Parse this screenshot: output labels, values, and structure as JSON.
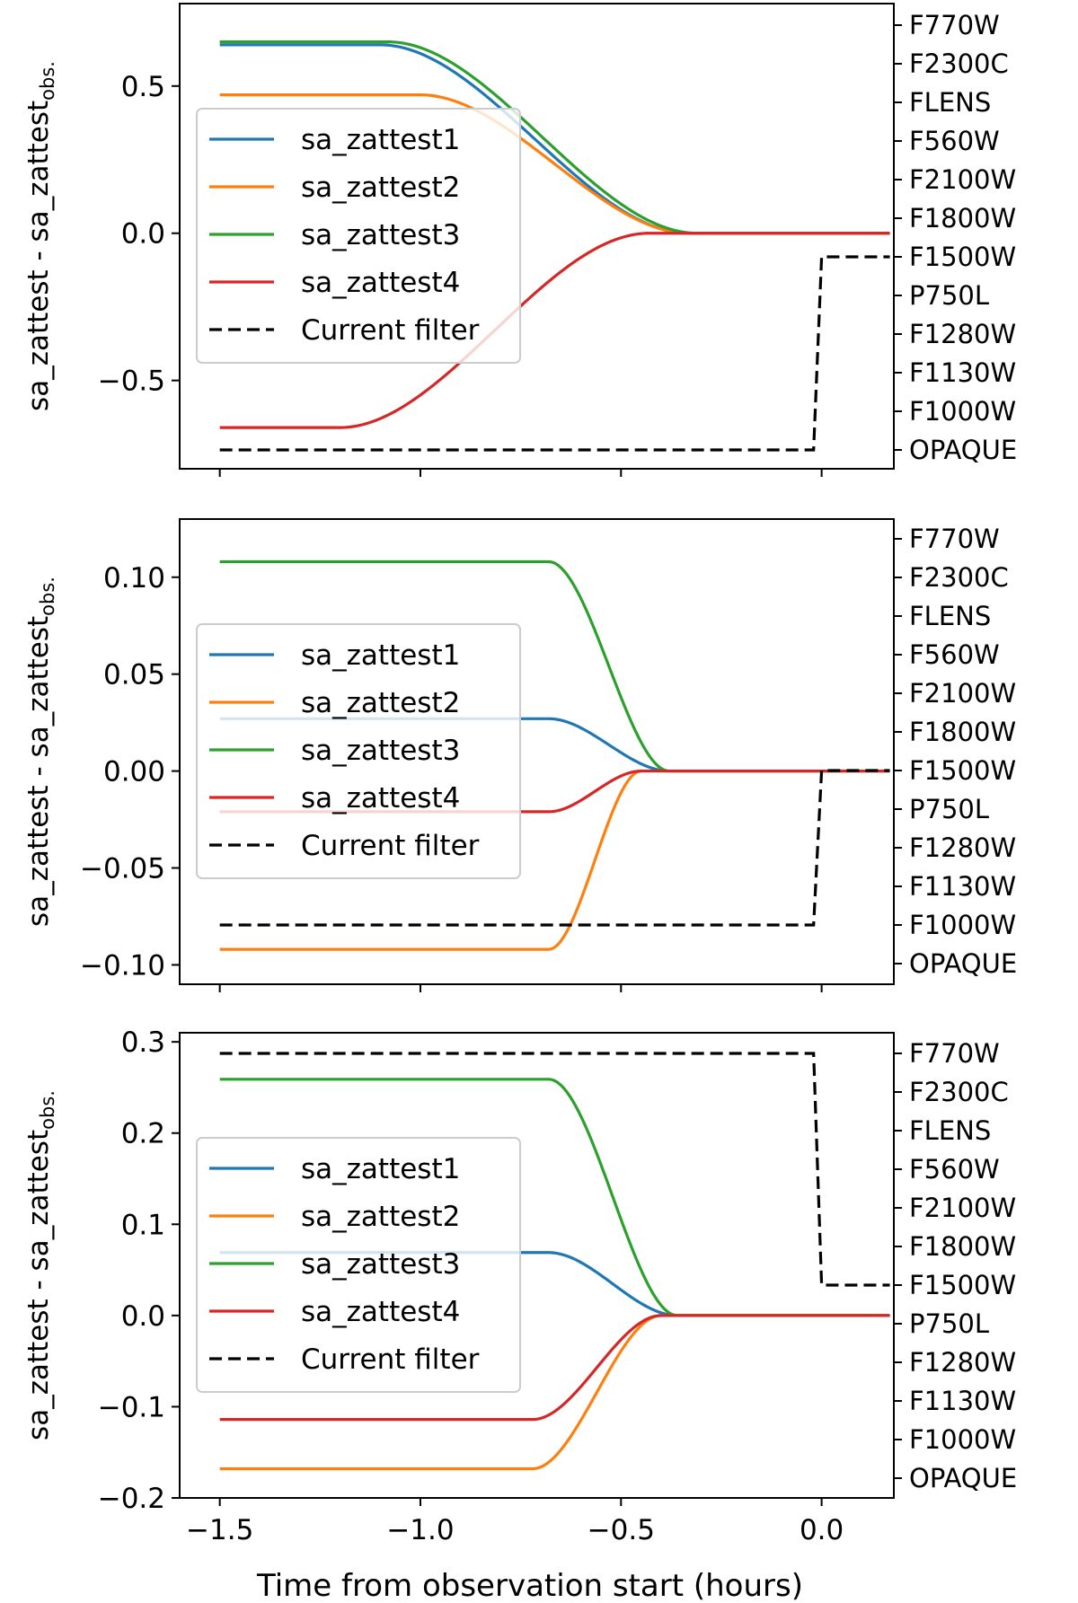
{
  "colors": {
    "sa_zattest1": "#1f77b4",
    "sa_zattest2": "#ff7f0e",
    "sa_zattest3": "#2ca02c",
    "sa_zattest4": "#d62728",
    "current_filter": "#000000",
    "axes": "#000000",
    "legend_border": "#cccccc"
  },
  "figure": {
    "xlabel": "Time from observation start (hours)",
    "xlim": [
      -1.6,
      0.18
    ],
    "xticks": [
      -1.5,
      -1.0,
      -0.5,
      0.0
    ],
    "xtick_labels": [
      "−1.5",
      "−1.0",
      "−0.5",
      "0.0"
    ]
  },
  "chart_data": [
    {
      "type": "line",
      "ylabel_main": "sa_zattest - sa_zattest",
      "ylabel_sub": "obs.",
      "ylim": [
        -0.8,
        0.78
      ],
      "yticks": [
        0.5,
        0.0,
        -0.5
      ],
      "ytick_labels": [
        "0.5",
        "0.0",
        "−0.5"
      ],
      "right_axis_labels": [
        "OPAQUE",
        "F1000W",
        "F1130W",
        "F1280W",
        "P750L",
        "F1500W",
        "F1800W",
        "F2100W",
        "F560W",
        "FLENS",
        "F2300C",
        "F770W"
      ],
      "series": [
        {
          "name": "sa_zattest1",
          "start": -1.5,
          "end": 0.17,
          "plateau": 0.64,
          "t0": -1.1,
          "t1": -0.33,
          "final": 0.0
        },
        {
          "name": "sa_zattest2",
          "start": -1.5,
          "end": 0.17,
          "plateau": 0.47,
          "t0": -1.0,
          "t1": -0.33,
          "final": 0.0
        },
        {
          "name": "sa_zattest3",
          "start": -1.5,
          "end": 0.17,
          "plateau": 0.65,
          "t0": -1.08,
          "t1": -0.31,
          "final": 0.0
        },
        {
          "name": "sa_zattest4",
          "start": -1.5,
          "end": 0.17,
          "plateau": -0.66,
          "t0": -1.2,
          "t1": -0.43,
          "final": 0.0
        }
      ],
      "filter_series": {
        "name": "Current filter",
        "start": -1.5,
        "switch": -0.02,
        "end": 0.17,
        "from": "OPAQUE",
        "to": "F1500W"
      },
      "legend": [
        "sa_zattest1",
        "sa_zattest2",
        "sa_zattest3",
        "sa_zattest4",
        "Current filter"
      ]
    },
    {
      "type": "line",
      "ylabel_main": "sa_zattest - sa_zattest",
      "ylabel_sub": "obs.",
      "ylim": [
        -0.11,
        0.13
      ],
      "yticks": [
        0.1,
        0.05,
        0.0,
        -0.05,
        -0.1
      ],
      "ytick_labels": [
        "0.10",
        "0.05",
        "0.00",
        "−0.05",
        "−0.10"
      ],
      "right_axis_labels": [
        "OPAQUE",
        "F1000W",
        "F1130W",
        "F1280W",
        "P750L",
        "F1500W",
        "F1800W",
        "F2100W",
        "F560W",
        "FLENS",
        "F2300C",
        "F770W"
      ],
      "series": [
        {
          "name": "sa_zattest1",
          "start": -1.5,
          "end": 0.17,
          "plateau": 0.027,
          "t0": -0.68,
          "t1": -0.38,
          "final": 0.0
        },
        {
          "name": "sa_zattest2",
          "start": -1.5,
          "end": 0.17,
          "plateau": -0.092,
          "t0": -0.68,
          "t1": -0.45,
          "final": 0.0
        },
        {
          "name": "sa_zattest3",
          "start": -1.5,
          "end": 0.17,
          "plateau": 0.108,
          "t0": -0.68,
          "t1": -0.38,
          "final": 0.0
        },
        {
          "name": "sa_zattest4",
          "start": -1.5,
          "end": 0.17,
          "plateau": -0.021,
          "t0": -0.68,
          "t1": -0.45,
          "final": 0.0
        }
      ],
      "filter_series": {
        "name": "Current filter",
        "start": -1.5,
        "switch": -0.02,
        "end": 0.17,
        "from": "F1000W",
        "to": "F1500W"
      },
      "legend": [
        "sa_zattest1",
        "sa_zattest2",
        "sa_zattest3",
        "sa_zattest4",
        "Current filter"
      ]
    },
    {
      "type": "line",
      "ylabel_main": "sa_zattest - sa_zattest",
      "ylabel_sub": "obs.",
      "ylim": [
        -0.2,
        0.31
      ],
      "yticks": [
        0.3,
        0.2,
        0.1,
        0.0,
        -0.1,
        -0.2
      ],
      "ytick_labels": [
        "0.3",
        "0.2",
        "0.1",
        "0.0",
        "−0.1",
        "−0.2"
      ],
      "right_axis_labels": [
        "OPAQUE",
        "F1000W",
        "F1130W",
        "F1280W",
        "P750L",
        "F1500W",
        "F1800W",
        "F2100W",
        "F560W",
        "FLENS",
        "F2300C",
        "F770W"
      ],
      "series": [
        {
          "name": "sa_zattest1",
          "start": -1.5,
          "end": 0.17,
          "plateau": 0.069,
          "t0": -0.68,
          "t1": -0.36,
          "final": 0.0
        },
        {
          "name": "sa_zattest2",
          "start": -1.5,
          "end": 0.17,
          "plateau": -0.168,
          "t0": -0.72,
          "t1": -0.4,
          "final": 0.0
        },
        {
          "name": "sa_zattest3",
          "start": -1.5,
          "end": 0.17,
          "plateau": 0.259,
          "t0": -0.68,
          "t1": -0.36,
          "final": 0.0
        },
        {
          "name": "sa_zattest4",
          "start": -1.5,
          "end": 0.17,
          "plateau": -0.114,
          "t0": -0.72,
          "t1": -0.4,
          "final": 0.0
        }
      ],
      "filter_series": {
        "name": "Current filter",
        "start": -1.5,
        "switch": -0.02,
        "end": 0.17,
        "from": "F770W",
        "to": "F1500W"
      },
      "legend": [
        "sa_zattest1",
        "sa_zattest2",
        "sa_zattest3",
        "sa_zattest4",
        "Current filter"
      ]
    }
  ]
}
